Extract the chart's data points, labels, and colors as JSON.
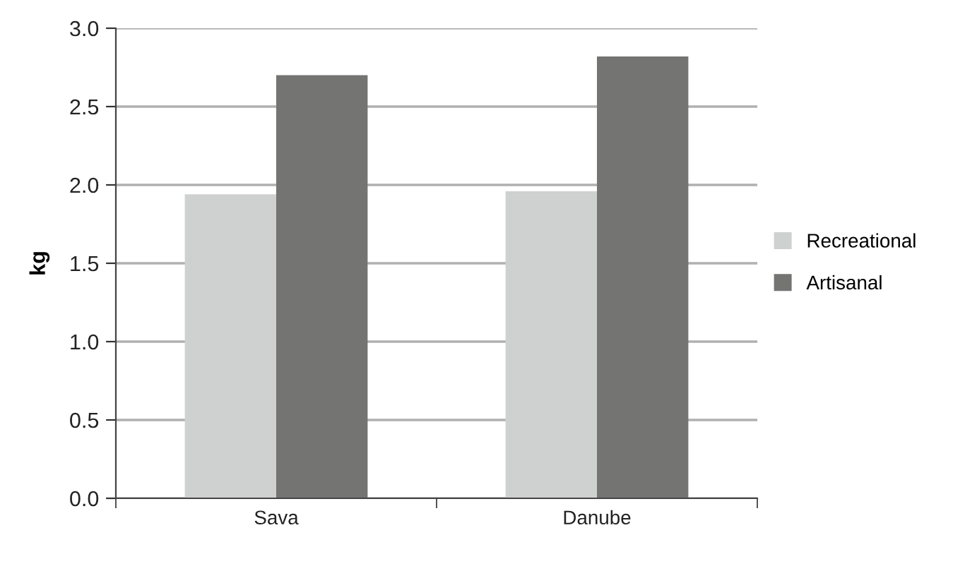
{
  "chart_data": {
    "type": "bar",
    "ylabel": "kg",
    "categories": [
      "Sava",
      "Danube"
    ],
    "series": [
      {
        "name": "Recreational",
        "color": "#cfd1d0",
        "values": [
          1.94,
          1.96
        ]
      },
      {
        "name": "Artisanal",
        "color": "#747472",
        "values": [
          2.7,
          2.82
        ]
      }
    ],
    "ylim": [
      0,
      3.0
    ],
    "yticks": [
      {
        "value": 0,
        "label": "0.0"
      },
      {
        "value": 0.5,
        "label": "0.5"
      },
      {
        "value": 1,
        "label": "1.0"
      },
      {
        "value": 1.5,
        "label": "1.5"
      },
      {
        "value": 2,
        "label": "2.0"
      },
      {
        "value": 2.5,
        "label": "2.5"
      },
      {
        "value": 3,
        "label": "3.0"
      }
    ],
    "grid": "y",
    "legend": "right"
  }
}
